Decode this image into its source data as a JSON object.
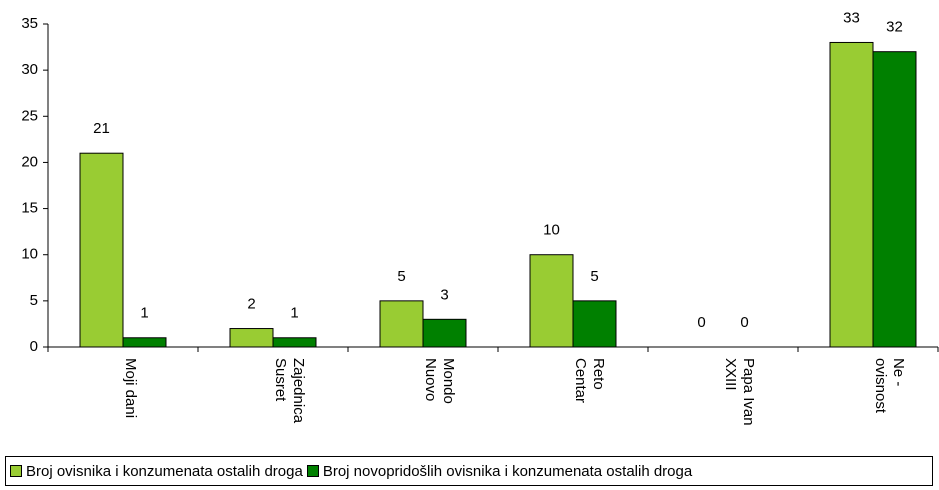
{
  "chart_data": {
    "type": "bar",
    "categories": [
      "Moji dani",
      "Zajednica\nSusret",
      "Mondo\nNuovo",
      "Reto\nCentar",
      "Papa Ivan\nXXIII",
      "Ne -\novisnost"
    ],
    "series": [
      {
        "name": "Broj ovisnika i konzumenata ostalih droga",
        "color": "#99cc33",
        "values": [
          21,
          2,
          5,
          10,
          0,
          33
        ]
      },
      {
        "name": "Broj novopridošlih ovisnika i konzumenata ostalih droga",
        "color": "#008000",
        "values": [
          1,
          1,
          3,
          5,
          0,
          32
        ]
      }
    ],
    "ylim": [
      0,
      35
    ],
    "yticks": [
      0,
      5,
      10,
      15,
      20,
      25,
      30,
      35
    ],
    "legend": "bottom"
  }
}
